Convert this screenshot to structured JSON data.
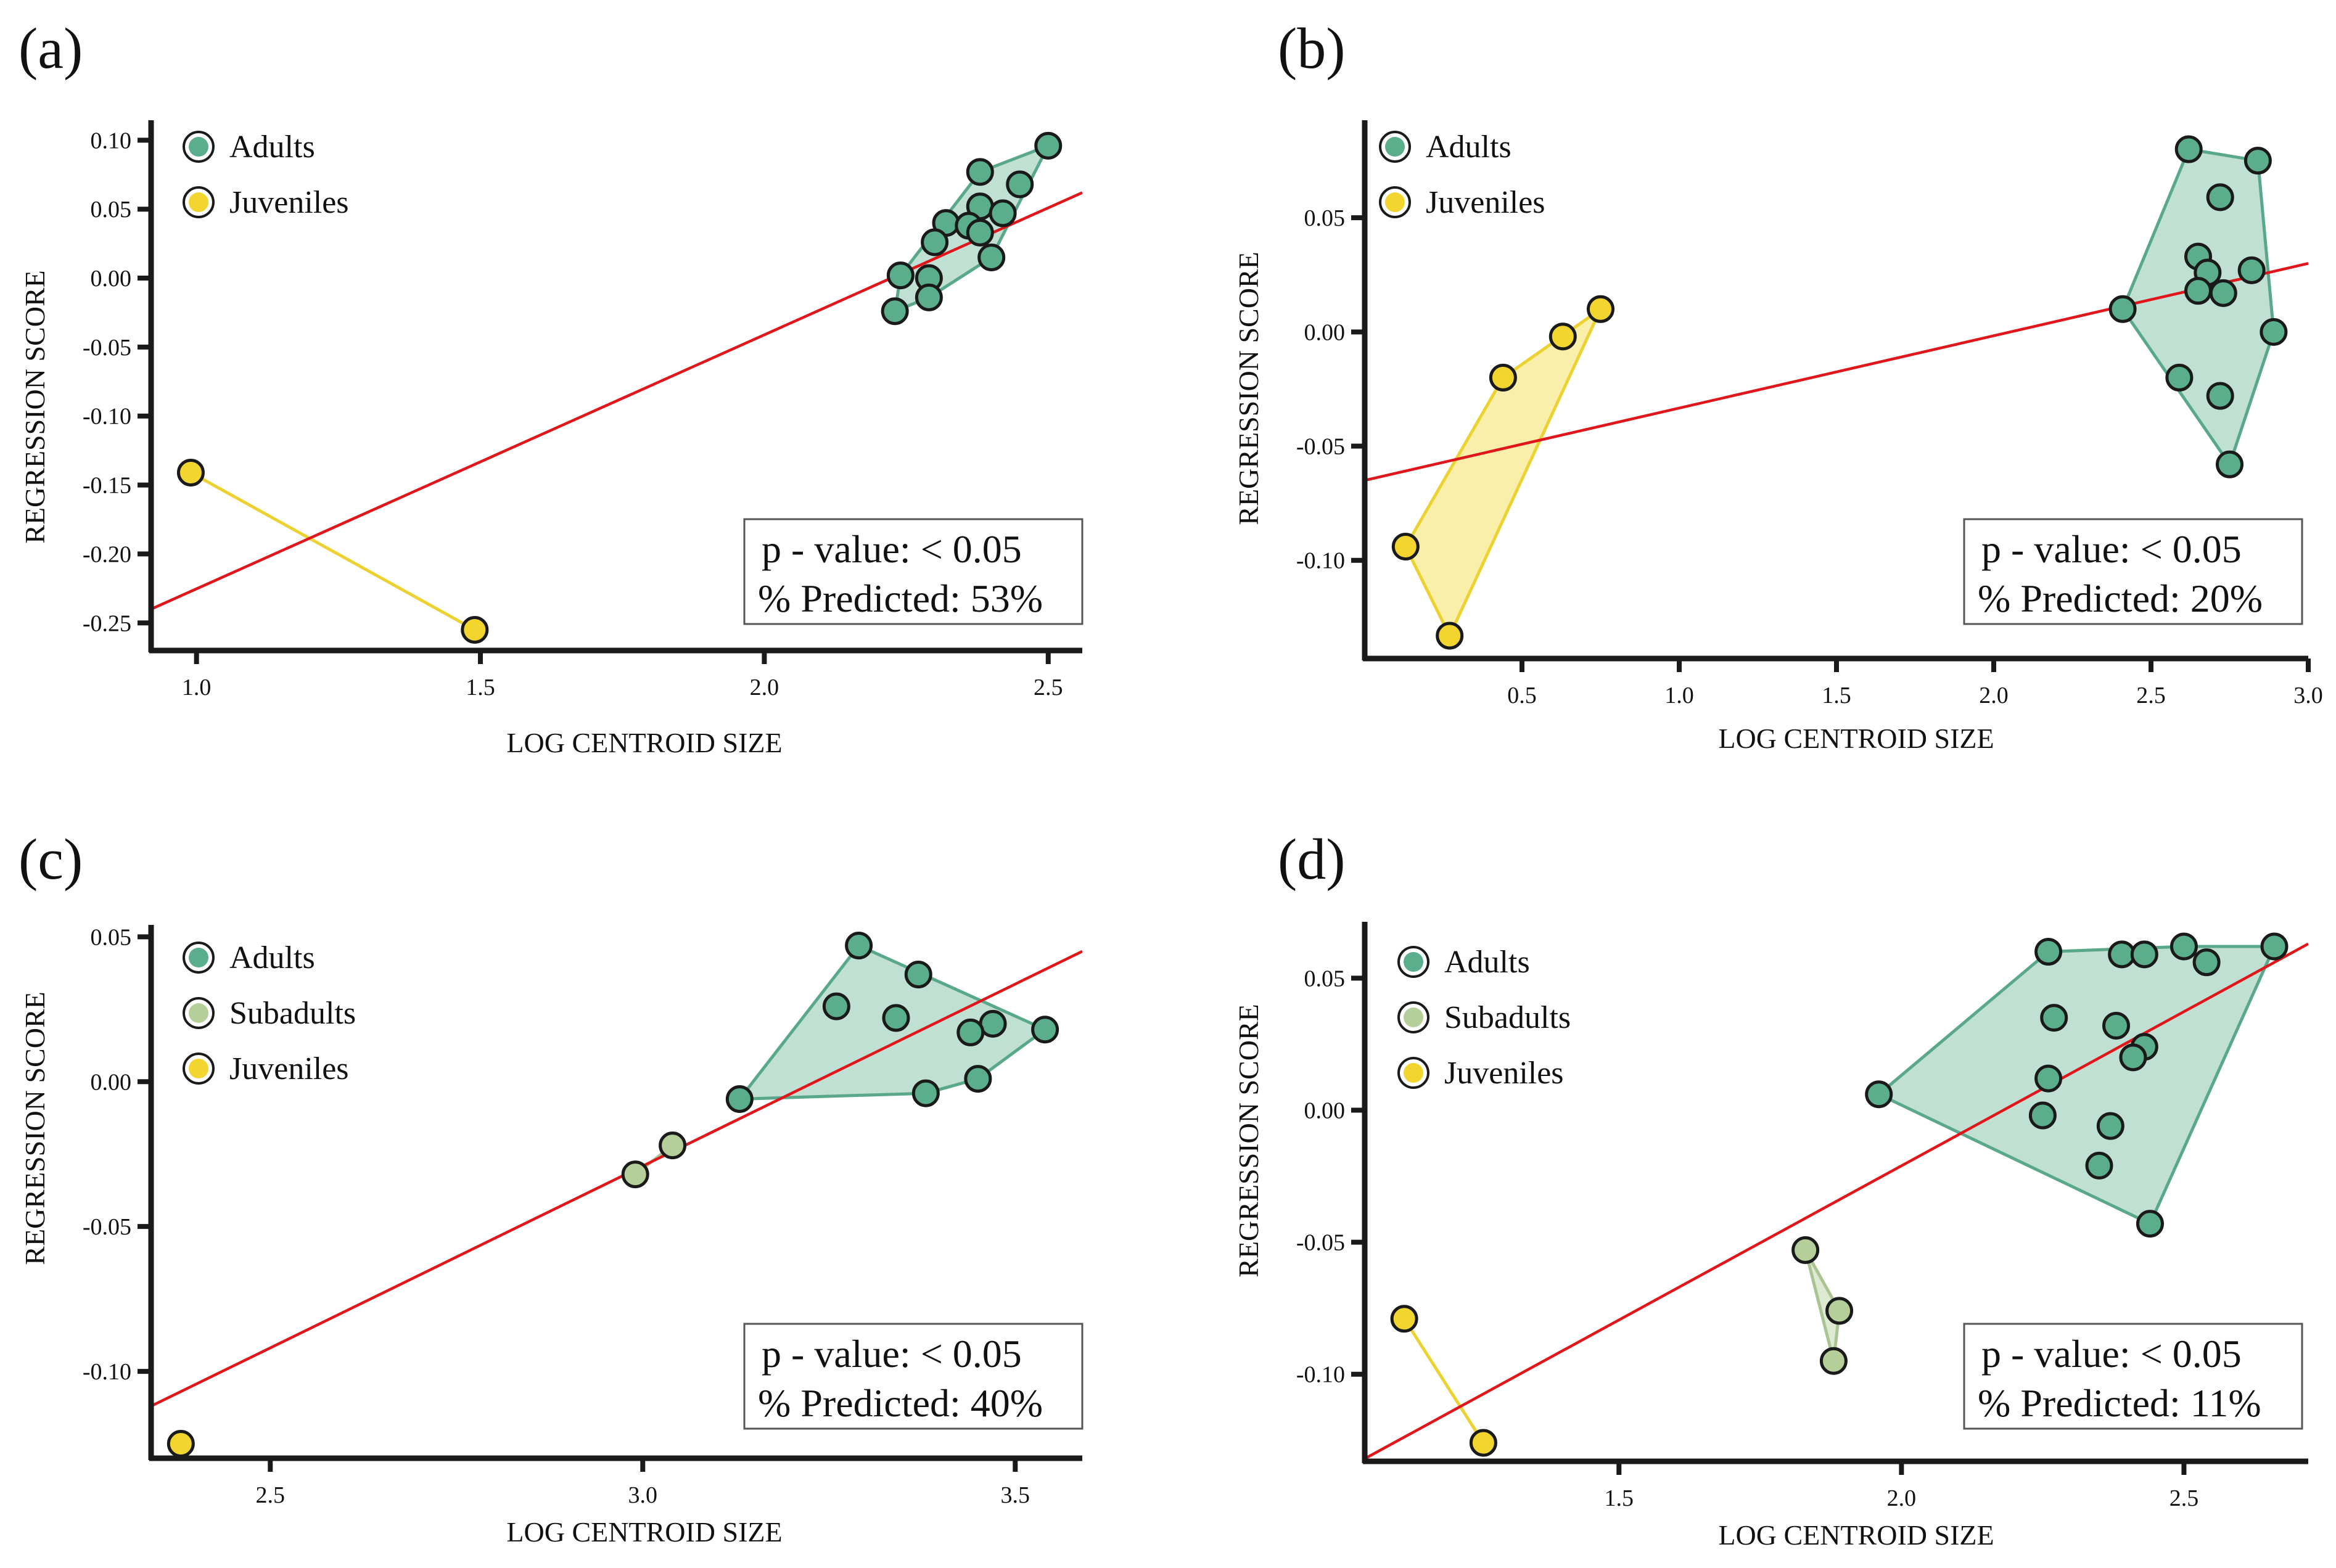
{
  "chart_data": [
    {
      "type": "scatter",
      "panel_label": "(a)",
      "xlabel": "LOG CENTROID SIZE",
      "ylabel": "REGRESSION SCORE",
      "xlim": [
        0.92,
        2.56
      ],
      "ylim": [
        -0.27,
        0.11
      ],
      "xticks": [
        1.0,
        1.5,
        2.0,
        2.5
      ],
      "xtick_labels": [
        "1.0",
        "1.5",
        "2.0",
        "2.5"
      ],
      "yticks": [
        0.1,
        0.05,
        0.0,
        -0.05,
        -0.1,
        -0.15,
        -0.2,
        -0.25
      ],
      "ytick_labels": [
        "0.10",
        "0.05",
        "0.00",
        "-0.05",
        "-0.10",
        "-0.15",
        "-0.20",
        "-0.25"
      ],
      "legend": [
        "Adults",
        "Juveniles"
      ],
      "legend_position": "top-left",
      "regression_line": {
        "x": [
          0.92,
          2.56
        ],
        "y": [
          -0.24,
          0.062
        ]
      },
      "series": [
        {
          "name": "Adults",
          "color": "#5aae8c",
          "hull": true,
          "points": [
            [
              2.5,
              0.096
            ],
            [
              2.38,
              0.077
            ],
            [
              2.45,
              0.068
            ],
            [
              2.38,
              0.052
            ],
            [
              2.42,
              0.047
            ],
            [
              2.32,
              0.04
            ],
            [
              2.36,
              0.038
            ],
            [
              2.38,
              0.033
            ],
            [
              2.3,
              0.026
            ],
            [
              2.4,
              0.015
            ],
            [
              2.24,
              0.002
            ],
            [
              2.29,
              0.0
            ],
            [
              2.29,
              -0.014
            ],
            [
              2.23,
              -0.024
            ]
          ]
        },
        {
          "name": "Juveniles",
          "color": "#f2d52e",
          "hull": true,
          "points": [
            [
              0.99,
              -0.141
            ],
            [
              1.49,
              -0.255
            ]
          ]
        }
      ],
      "stats": {
        "p_value": "p - value: < 0.05",
        "predicted": "% Predicted: 53%"
      }
    },
    {
      "type": "scatter",
      "panel_label": "(b)",
      "xlabel": "LOG CENTROID SIZE",
      "ylabel": "REGRESSION SCORE",
      "xlim": [
        0.0,
        3.0
      ],
      "ylim": [
        -0.143,
        0.09
      ],
      "xticks": [
        0.5,
        1.0,
        1.5,
        2.0,
        2.5,
        3.0
      ],
      "xtick_labels": [
        "0.5",
        "1.0",
        "1.5",
        "2.0",
        "2.5",
        "3.0"
      ],
      "yticks": [
        0.05,
        0.0,
        -0.05,
        -0.1
      ],
      "ytick_labels": [
        "0.05",
        "0.00",
        "-0.05",
        "-0.10"
      ],
      "legend": [
        "Adults",
        "Juveniles"
      ],
      "legend_position": "top-left",
      "regression_line": {
        "x": [
          0.0,
          3.0
        ],
        "y": [
          -0.065,
          0.03
        ]
      },
      "series": [
        {
          "name": "Adults",
          "color": "#5aae8c",
          "hull": true,
          "points": [
            [
              2.62,
              0.08
            ],
            [
              2.84,
              0.075
            ],
            [
              2.72,
              0.059
            ],
            [
              2.65,
              0.033
            ],
            [
              2.68,
              0.026
            ],
            [
              2.82,
              0.027
            ],
            [
              2.65,
              0.018
            ],
            [
              2.73,
              0.017
            ],
            [
              2.41,
              0.01
            ],
            [
              2.89,
              0.0
            ],
            [
              2.59,
              -0.02
            ],
            [
              2.72,
              -0.028
            ],
            [
              2.75,
              -0.058
            ]
          ]
        },
        {
          "name": "Juveniles",
          "color": "#f2d52e",
          "hull": true,
          "points": [
            [
              0.13,
              -0.094
            ],
            [
              0.27,
              -0.133
            ],
            [
              0.44,
              -0.02
            ],
            [
              0.63,
              -0.002
            ],
            [
              0.75,
              0.01
            ]
          ]
        }
      ],
      "stats": {
        "p_value": "p - value: < 0.05",
        "predicted": "% Predicted: 20%"
      }
    },
    {
      "type": "scatter",
      "panel_label": "(c)",
      "xlabel": "LOG CENTROID SIZE",
      "ylabel": "REGRESSION SCORE",
      "xlim": [
        2.34,
        3.59
      ],
      "ylim": [
        -0.13,
        0.052
      ],
      "xticks": [
        2.5,
        3.0,
        3.5
      ],
      "xtick_labels": [
        "2.5",
        "3.0",
        "3.5"
      ],
      "yticks": [
        0.05,
        0.0,
        -0.05,
        -0.1
      ],
      "ytick_labels": [
        "0.05",
        "0.00",
        "-0.05",
        "-0.10"
      ],
      "legend": [
        "Adults",
        "Subadults",
        "Juveniles"
      ],
      "legend_position": "top-left",
      "regression_line": {
        "x": [
          2.34,
          3.59
        ],
        "y": [
          -0.112,
          0.045
        ]
      },
      "series": [
        {
          "name": "Adults",
          "color": "#5aae8c",
          "hull": true,
          "points": [
            [
              3.29,
              0.047
            ],
            [
              3.37,
              0.037
            ],
            [
              3.26,
              0.026
            ],
            [
              3.34,
              0.022
            ],
            [
              3.47,
              0.02
            ],
            [
              3.44,
              0.017
            ],
            [
              3.54,
              0.018
            ],
            [
              3.45,
              0.001
            ],
            [
              3.38,
              -0.004
            ],
            [
              3.13,
              -0.006
            ]
          ]
        },
        {
          "name": "Subadults",
          "color": "#b5cf9b",
          "hull": true,
          "points": [
            [
              2.99,
              -0.032
            ],
            [
              3.04,
              -0.022
            ]
          ]
        },
        {
          "name": "Juveniles",
          "color": "#f2d52e",
          "hull": false,
          "points": [
            [
              2.38,
              -0.125
            ]
          ]
        }
      ],
      "stats": {
        "p_value": "p - value: < 0.05",
        "predicted": "% Predicted: 40%"
      }
    },
    {
      "type": "scatter",
      "panel_label": "(d)",
      "xlabel": "LOG CENTROID SIZE",
      "ylabel": "REGRESSION SCORE",
      "xlim": [
        1.05,
        2.72
      ],
      "ylim": [
        -0.133,
        0.069
      ],
      "xticks": [
        1.5,
        2.0,
        2.5
      ],
      "xtick_labels": [
        "1.5",
        "2.0",
        "2.5"
      ],
      "yticks": [
        0.05,
        0.0,
        -0.05,
        -0.1
      ],
      "ytick_labels": [
        "0.05",
        "0.00",
        "-0.05",
        "-0.10"
      ],
      "legend": [
        "Adults",
        "Subadults",
        "Juveniles"
      ],
      "legend_position": "top-left",
      "regression_line": {
        "x": [
          1.05,
          2.72
        ],
        "y": [
          -0.132,
          0.063
        ]
      },
      "series": [
        {
          "name": "Adults",
          "color": "#5aae8c",
          "hull": true,
          "points": [
            [
              2.26,
              0.06
            ],
            [
              2.39,
              0.059
            ],
            [
              2.43,
              0.059
            ],
            [
              2.5,
              0.062
            ],
            [
              2.54,
              0.056
            ],
            [
              2.66,
              0.062
            ],
            [
              2.27,
              0.035
            ],
            [
              2.38,
              0.032
            ],
            [
              2.43,
              0.024
            ],
            [
              2.41,
              0.02
            ],
            [
              2.26,
              0.012
            ],
            [
              1.96,
              0.006
            ],
            [
              2.25,
              -0.002
            ],
            [
              2.37,
              -0.006
            ],
            [
              2.35,
              -0.021
            ],
            [
              2.44,
              -0.043
            ]
          ]
        },
        {
          "name": "Subadults",
          "color": "#b5cf9b",
          "hull": true,
          "points": [
            [
              1.83,
              -0.053
            ],
            [
              1.89,
              -0.076
            ],
            [
              1.88,
              -0.095
            ]
          ]
        },
        {
          "name": "Juveniles",
          "color": "#f2d52e",
          "hull": true,
          "points": [
            [
              1.12,
              -0.079
            ],
            [
              1.26,
              -0.126
            ]
          ]
        }
      ],
      "stats": {
        "p_value": "p - value: < 0.05",
        "predicted": "% Predicted: 11%"
      }
    }
  ],
  "colors": {
    "regression_line": "#e0161b",
    "axis": "#1a1a1a",
    "point_stroke": "#1a1a1a"
  }
}
